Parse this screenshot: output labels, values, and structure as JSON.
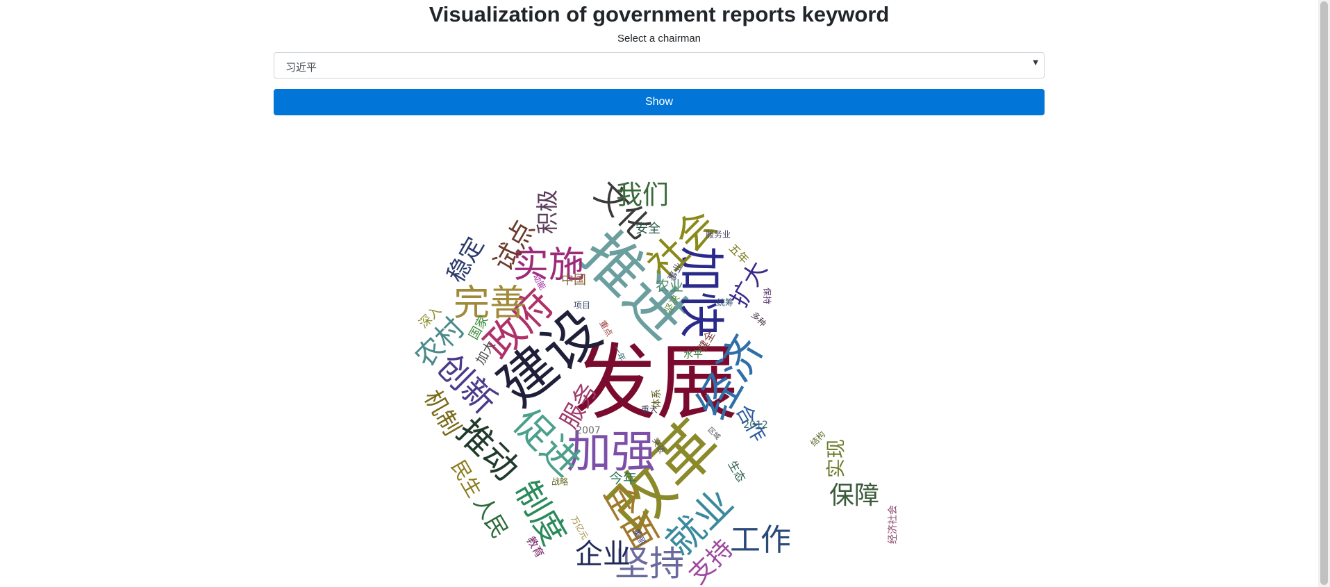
{
  "header": {
    "title": "Visualization of government reports keyword",
    "subtitle": "Select a chairman"
  },
  "chairman_select": {
    "selected": "习近平"
  },
  "show_button": {
    "label": "Show"
  },
  "word_cloud": [
    {
      "text": "发展",
      "color": "#7a0b2e"
    },
    {
      "text": "改革",
      "color": "#8a8a2a"
    },
    {
      "text": "建设",
      "color": "#1f1f3a"
    },
    {
      "text": "推进",
      "color": "#6b9e9e"
    },
    {
      "text": "加强",
      "color": "#7d4fa8"
    },
    {
      "text": "经济",
      "color": "#2f6fa8"
    },
    {
      "text": "加快",
      "color": "#2a2a8a"
    },
    {
      "text": "社会",
      "color": "#8a8a1a"
    },
    {
      "text": "政府",
      "color": "#b0306a"
    },
    {
      "text": "实施",
      "color": "#9e2a7a"
    },
    {
      "text": "完善",
      "color": "#a08a3a"
    },
    {
      "text": "促进",
      "color": "#4aa08a"
    },
    {
      "text": "推动",
      "color": "#1f3a2a"
    },
    {
      "text": "创新",
      "color": "#4a3a8a"
    },
    {
      "text": "就业",
      "color": "#3a8a9e"
    },
    {
      "text": "全面",
      "color": "#a07a2a"
    },
    {
      "text": "制度",
      "color": "#2a8a5a"
    },
    {
      "text": "坚持",
      "color": "#6a6a9e"
    },
    {
      "text": "工作",
      "color": "#2a4a7a"
    },
    {
      "text": "企业",
      "color": "#1f2a5a"
    },
    {
      "text": "保障",
      "color": "#3a5a3a"
    },
    {
      "text": "实现",
      "color": "#6a7a2a"
    },
    {
      "text": "支持",
      "color": "#9e4a9e"
    },
    {
      "text": "农村",
      "color": "#4a8a8a"
    },
    {
      "text": "服务",
      "color": "#9e3a6a"
    },
    {
      "text": "扩大",
      "color": "#3a2a8a"
    },
    {
      "text": "合作",
      "color": "#2a5a9e"
    },
    {
      "text": "机制",
      "color": "#7a6a1a"
    },
    {
      "text": "人民",
      "color": "#2a6a3a"
    },
    {
      "text": "民生",
      "color": "#8a7a1a"
    },
    {
      "text": "文化",
      "color": "#3a3a3a"
    },
    {
      "text": "我们",
      "color": "#3a6a3a"
    },
    {
      "text": "积极",
      "color": "#5a3a5a"
    },
    {
      "text": "试点",
      "color": "#6a3a2a"
    },
    {
      "text": "稳定",
      "color": "#2a3a6a"
    },
    {
      "text": "安全",
      "color": "#2a5a4a"
    },
    {
      "text": "五年",
      "color": "#7a7a1a"
    },
    {
      "text": "中国",
      "color": "#8a6a3a"
    },
    {
      "text": "农业",
      "color": "#4a8a6a"
    },
    {
      "text": "深入",
      "color": "#8a8a2a"
    },
    {
      "text": "国家",
      "color": "#3a8a3a"
    },
    {
      "text": "加大",
      "color": "#4a4a4a"
    },
    {
      "text": "今年",
      "color": "#2a7a5a"
    },
    {
      "text": "教育",
      "color": "#7a2a6a"
    },
    {
      "text": "生态",
      "color": "#2a5a4a"
    },
    {
      "text": "2012",
      "color": "#3a6a6a"
    },
    {
      "text": "2007",
      "color": "#6a6a6a"
    },
    {
      "text": "健全",
      "color": "#7a3a3a"
    },
    {
      "text": "水平",
      "color": "#3a7a3a"
    },
    {
      "text": "体系",
      "color": "#5a5a1a"
    },
    {
      "text": "事业",
      "color": "#4a4a7a"
    },
    {
      "text": "坚决",
      "color": "#5a8a3a"
    },
    {
      "text": "统筹",
      "color": "#2a4a6a"
    },
    {
      "text": "保持",
      "color": "#5a3a6a"
    },
    {
      "text": "多种",
      "color": "#4a3a4a"
    },
    {
      "text": "服务业",
      "color": "#4a4a6a"
    },
    {
      "text": "项目",
      "color": "#3a4a6a"
    },
    {
      "text": "重点",
      "color": "#9e3a3a"
    },
    {
      "text": "动能",
      "color": "#9e2a9e"
    },
    {
      "text": "重大",
      "color": "#3a3a5a"
    },
    {
      "text": "战略",
      "color": "#6a6a2a"
    },
    {
      "text": "万亿元",
      "color": "#9e8a3a"
    },
    {
      "text": "美丽",
      "color": "#3a3a7a"
    },
    {
      "text": "结构",
      "color": "#5a6a2a"
    },
    {
      "text": "经济社会",
      "color": "#8a4a6a"
    },
    {
      "text": "区域",
      "color": "#4a4a4a"
    },
    {
      "text": "一年",
      "color": "#3a6a7a"
    },
    {
      "text": "突破",
      "color": "#5a5a5a"
    }
  ]
}
